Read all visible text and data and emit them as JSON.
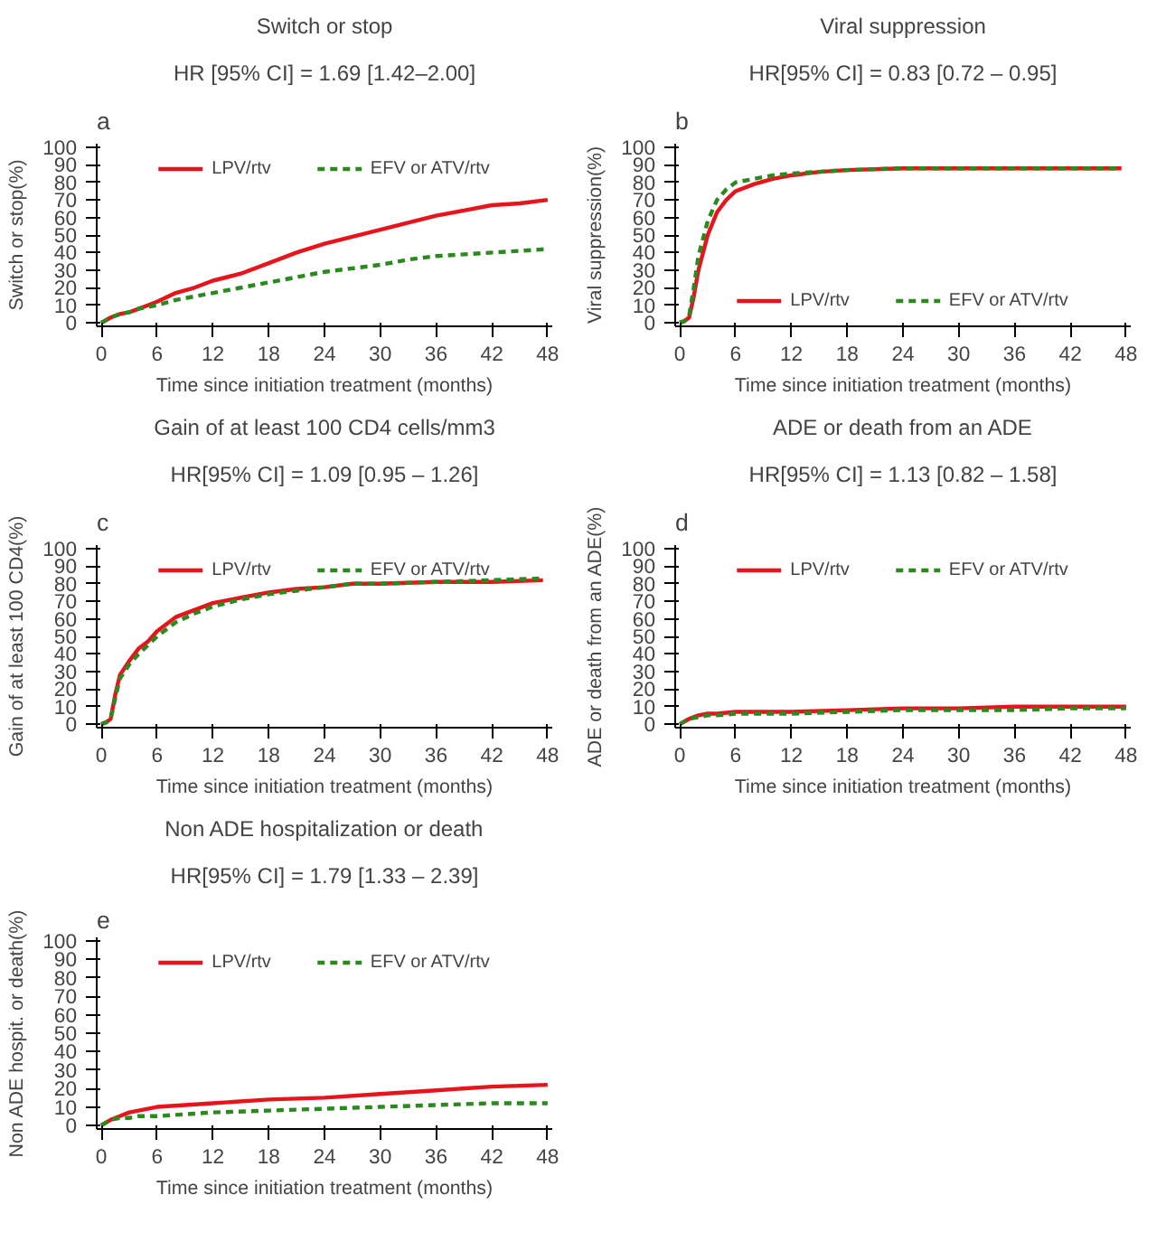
{
  "chart_data": [
    {
      "type": "line",
      "title": "Switch or stop",
      "subtitle": "HR [95% CI] = 1.69 [1.42–2.00]",
      "annotations": [
        "a"
      ],
      "xlabel": "Time since initiation treatment (months)",
      "ylabel": "Switch or stop(%)",
      "xlim": [
        -0.5,
        48.5
      ],
      "ylim": [
        -2,
        102
      ],
      "xticks": [
        0,
        6,
        12,
        18,
        24,
        30,
        36,
        42,
        48
      ],
      "yticks": [
        0,
        10,
        20,
        30,
        40,
        50,
        60,
        70,
        80,
        90,
        100
      ],
      "legend": "top",
      "grid": false,
      "series": [
        {
          "name": "LPV/rtv",
          "color": "#e8141c",
          "line_style": "solid",
          "x": [
            0,
            1,
            2,
            3,
            4,
            5,
            6,
            8,
            10,
            12,
            15,
            18,
            21,
            24,
            27,
            30,
            33,
            36,
            39,
            42,
            45,
            48
          ],
          "values": [
            0,
            3,
            5,
            6,
            8,
            10,
            12,
            17,
            20,
            24,
            28,
            34,
            40,
            45,
            49,
            53,
            57,
            61,
            64,
            67,
            68,
            70
          ]
        },
        {
          "name": "EFV or ATV/rtv",
          "color": "#2a8a1e",
          "line_style": "dashed",
          "x": [
            0,
            1,
            2,
            3,
            4,
            5,
            6,
            8,
            10,
            12,
            15,
            18,
            21,
            24,
            27,
            30,
            33,
            36,
            39,
            42,
            45,
            48
          ],
          "values": [
            0,
            3,
            5,
            6,
            8,
            9,
            10,
            13,
            15,
            17,
            20,
            23,
            26,
            29,
            31,
            33,
            36,
            38,
            39,
            40,
            41,
            42
          ]
        }
      ]
    },
    {
      "type": "line",
      "title": "Viral suppression",
      "subtitle": "HR[95% CI] = 0.83 [0.72 – 0.95]",
      "annotations": [
        "b"
      ],
      "xlabel": "Time since initiation treatment (months)",
      "ylabel": "Viral suppression(%)",
      "xlim": [
        -0.5,
        48.5
      ],
      "ylim": [
        -2,
        102
      ],
      "xticks": [
        0,
        6,
        12,
        18,
        24,
        30,
        36,
        42,
        48
      ],
      "yticks": [
        0,
        10,
        20,
        30,
        40,
        50,
        60,
        70,
        80,
        90,
        100
      ],
      "legend": "bottom",
      "grid": false,
      "series": [
        {
          "name": "LPV/rtv",
          "color": "#e8141c",
          "line_style": "solid",
          "x": [
            0,
            0.5,
            1,
            1.5,
            2,
            3,
            4,
            5,
            6,
            8,
            10,
            12,
            15,
            18,
            24,
            30,
            36,
            42,
            47.5
          ],
          "values": [
            0,
            1,
            3,
            15,
            30,
            50,
            63,
            70,
            75,
            79,
            82,
            84,
            86,
            87,
            88,
            88,
            88,
            88,
            88
          ]
        },
        {
          "name": "EFV or ATV/rtv",
          "color": "#2a8a1e",
          "line_style": "dashed",
          "x": [
            0,
            0.5,
            1,
            1.5,
            2,
            3,
            4,
            5,
            6,
            8,
            10,
            12,
            15,
            18,
            24,
            30,
            36,
            42,
            47.5
          ],
          "values": [
            0,
            1,
            4,
            20,
            38,
            58,
            70,
            76,
            80,
            82,
            84,
            85,
            86,
            87,
            88,
            88,
            88,
            88,
            88
          ]
        }
      ]
    },
    {
      "type": "line",
      "title": "Gain of at least 100 CD4 cells/mm3",
      "subtitle": "HR[95% CI] = 1.09 [0.95 – 1.26]",
      "annotations": [
        "c"
      ],
      "xlabel": "Time since initiation treatment (months)",
      "ylabel": "Gain of at least 100 CD4(%)",
      "xlim": [
        -0.5,
        48.5
      ],
      "ylim": [
        -2,
        102
      ],
      "xticks": [
        0,
        6,
        12,
        18,
        24,
        30,
        36,
        42,
        48
      ],
      "yticks": [
        0,
        10,
        20,
        30,
        40,
        50,
        60,
        70,
        80,
        90,
        100
      ],
      "legend": "top",
      "grid": false,
      "series": [
        {
          "name": "LPV/rtv",
          "color": "#e8141c",
          "line_style": "solid",
          "x": [
            0,
            0.5,
            1,
            1.5,
            2,
            3,
            4,
            5,
            6,
            8,
            10,
            12,
            15,
            18,
            21,
            24,
            27,
            30,
            36,
            42,
            47.5
          ],
          "values": [
            0,
            1,
            3,
            17,
            28,
            36,
            43,
            47,
            53,
            61,
            65,
            69,
            72,
            75,
            77,
            78,
            80,
            80,
            81,
            81,
            82
          ]
        },
        {
          "name": "EFV or ATV/rtv",
          "color": "#2a8a1e",
          "line_style": "dashed",
          "x": [
            0,
            0.5,
            1,
            1.5,
            2,
            3,
            4,
            5,
            6,
            8,
            10,
            12,
            15,
            18,
            21,
            24,
            27,
            30,
            36,
            42,
            47.5
          ],
          "values": [
            0,
            1,
            3,
            15,
            26,
            34,
            40,
            45,
            50,
            58,
            63,
            67,
            71,
            74,
            76,
            78,
            80,
            80,
            81,
            82,
            83
          ]
        }
      ]
    },
    {
      "type": "line",
      "title": "ADE or death from an ADE",
      "subtitle": "HR[95% CI] = 1.13 [0.82 – 1.58]",
      "annotations": [
        "d"
      ],
      "xlabel": "Time since initiation treatment (months)",
      "ylabel": "ADE or death from an ADE(%)",
      "xlim": [
        -0.5,
        48.5
      ],
      "ylim": [
        -2,
        102
      ],
      "xticks": [
        0,
        6,
        12,
        18,
        24,
        30,
        36,
        42,
        48
      ],
      "yticks": [
        0,
        10,
        20,
        30,
        40,
        50,
        60,
        70,
        80,
        90,
        100
      ],
      "legend": "top",
      "grid": false,
      "series": [
        {
          "name": "LPV/rtv",
          "color": "#e8141c",
          "line_style": "solid",
          "x": [
            0,
            1,
            2,
            3,
            4,
            6,
            12,
            18,
            24,
            30,
            36,
            42,
            48
          ],
          "values": [
            0,
            3,
            5,
            6,
            6,
            7,
            7,
            8,
            9,
            9,
            10,
            10,
            10
          ]
        },
        {
          "name": "EFV or ATV/rtv",
          "color": "#2a8a1e",
          "line_style": "dashed",
          "x": [
            0,
            1,
            2,
            3,
            4,
            6,
            12,
            18,
            24,
            30,
            36,
            42,
            48
          ],
          "values": [
            0,
            3,
            4,
            5,
            5,
            6,
            6,
            7,
            8,
            8,
            8,
            9,
            9
          ]
        }
      ]
    },
    {
      "type": "line",
      "title": "Non ADE hospitalization or death",
      "subtitle": "HR[95% CI] = 1.79 [1.33 – 2.39]",
      "annotations": [
        "e"
      ],
      "xlabel": "Time since initiation treatment (months)",
      "ylabel": "Non ADE hospit. or death(%)",
      "xlim": [
        -0.5,
        48.5
      ],
      "ylim": [
        -2,
        102
      ],
      "xticks": [
        0,
        6,
        12,
        18,
        24,
        30,
        36,
        42,
        48
      ],
      "yticks": [
        0,
        10,
        20,
        30,
        40,
        50,
        60,
        70,
        80,
        90,
        100
      ],
      "legend": "top",
      "grid": false,
      "series": [
        {
          "name": "LPV/rtv",
          "color": "#e8141c",
          "line_style": "solid",
          "x": [
            0,
            1,
            2,
            3,
            4,
            6,
            12,
            18,
            24,
            30,
            36,
            42,
            48
          ],
          "values": [
            0,
            3,
            5,
            7,
            8,
            10,
            12,
            14,
            15,
            17,
            19,
            21,
            22
          ]
        },
        {
          "name": "EFV or ATV/rtv",
          "color": "#2a8a1e",
          "line_style": "dashed",
          "x": [
            0,
            1,
            2,
            3,
            4,
            6,
            12,
            18,
            24,
            30,
            36,
            42,
            48
          ],
          "values": [
            0,
            3,
            4,
            4,
            5,
            5,
            7,
            8,
            9,
            10,
            11,
            12,
            12
          ]
        }
      ]
    }
  ]
}
